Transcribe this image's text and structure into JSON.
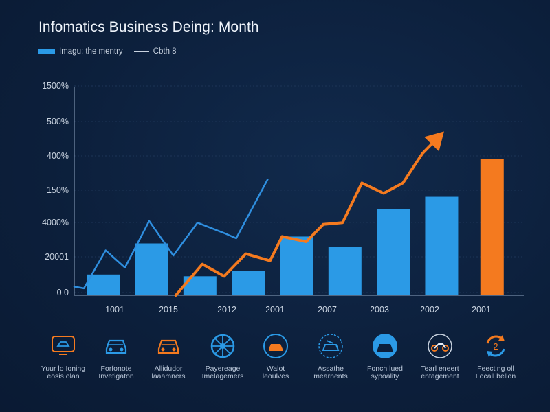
{
  "title": "Infomatics Business Deing: Month",
  "legend": {
    "bar_label": "Imagu: the mentry",
    "line_label": "Cbth 8"
  },
  "colors": {
    "background": "#0c1f3b",
    "bar_blue": "#2b9ae6",
    "bar_orange": "#f47a1f",
    "line_blue": "#2f8fe0",
    "line_orange": "#f47a1f",
    "grid": "#1d3557"
  },
  "chart_data": {
    "type": "bar",
    "title": "Infomatics Business Deing: Month",
    "xlabel": "",
    "ylabel": "",
    "y_tick_labels": [
      "0 0",
      "20001",
      "4000%",
      "150%",
      "400%",
      "500%",
      "1500%"
    ],
    "x_tick_labels": [
      "1001",
      "2015",
      "2012",
      "2001",
      "2007",
      "2003",
      "2002",
      "2001"
    ],
    "ylim": [
      0,
      6
    ],
    "bars": [
      {
        "x": 1.5,
        "value": 0.6,
        "color": "blue"
      },
      {
        "x": 2.5,
        "value": 1.5,
        "color": "blue"
      },
      {
        "x": 3.5,
        "value": 0.55,
        "color": "blue"
      },
      {
        "x": 4.5,
        "value": 0.7,
        "color": "blue"
      },
      {
        "x": 5.5,
        "value": 1.7,
        "color": "blue"
      },
      {
        "x": 6.5,
        "value": 1.4,
        "color": "blue"
      },
      {
        "x": 7.5,
        "value": 2.5,
        "color": "blue"
      },
      {
        "x": 8.5,
        "value": 2.85,
        "color": "blue"
      },
      {
        "x": 9.5,
        "value": 3.95,
        "color": "orange"
      }
    ],
    "series": [
      {
        "color": "blue",
        "points": [
          [
            0.9,
            0.25
          ],
          [
            1.1,
            0.2
          ],
          [
            1.55,
            1.3
          ],
          [
            1.95,
            0.8
          ],
          [
            2.45,
            2.15
          ],
          [
            2.95,
            1.15
          ],
          [
            3.45,
            2.1
          ],
          [
            4.0,
            1.8
          ],
          [
            4.25,
            1.65
          ],
          [
            4.9,
            3.35
          ]
        ]
      },
      {
        "color": "orange",
        "arrow": true,
        "points": [
          [
            3.0,
            0.0
          ],
          [
            3.55,
            0.9
          ],
          [
            4.0,
            0.55
          ],
          [
            4.45,
            1.2
          ],
          [
            4.95,
            1.0
          ],
          [
            5.2,
            1.7
          ],
          [
            5.7,
            1.55
          ],
          [
            6.05,
            2.05
          ],
          [
            6.45,
            2.1
          ],
          [
            6.85,
            3.25
          ],
          [
            7.3,
            2.95
          ],
          [
            7.7,
            3.25
          ],
          [
            8.1,
            4.1
          ],
          [
            8.45,
            4.6
          ]
        ]
      }
    ]
  },
  "icons": [
    {
      "name": "monitor-car-icon",
      "label_line1": "Yuur lo Ioning",
      "label_line2": "eosis olan"
    },
    {
      "name": "car-front-icon",
      "label_line1": "Forfonote",
      "label_line2": "Invetigaton"
    },
    {
      "name": "car-front-orange-icon",
      "label_line1": "Allidudor",
      "label_line2": "laaamners"
    },
    {
      "name": "wheel-icon",
      "label_line1": "Payereage",
      "label_line2": "Imelagemers"
    },
    {
      "name": "car-circle-icon",
      "label_line1": "Walot",
      "label_line2": "leoulves"
    },
    {
      "name": "car-repair-icon",
      "label_line1": "Assathe",
      "label_line2": "mearnents"
    },
    {
      "name": "car-badge-icon",
      "label_line1": "Fonch lued",
      "label_line2": "sypoality"
    },
    {
      "name": "motorcycle-icon",
      "label_line1": "Tearl eneert",
      "label_line2": "entagement"
    },
    {
      "name": "recycle-icon",
      "label_line1": "Feecting oll",
      "label_line2": "Locall bellon"
    }
  ]
}
